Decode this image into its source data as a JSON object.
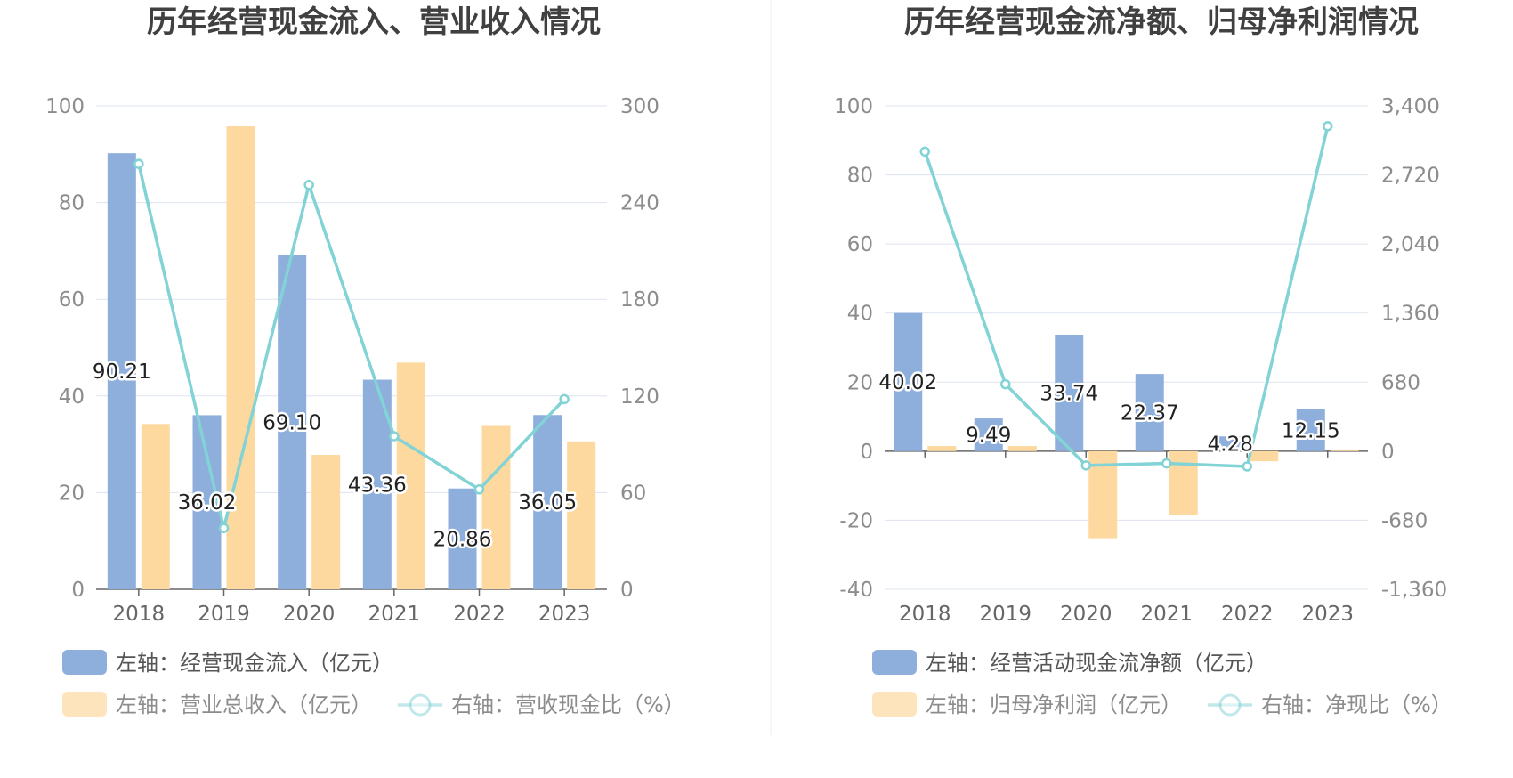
{
  "colors": {
    "blue": "#8eafdc",
    "orange": "#fdd9a0",
    "line": "#82d3d6",
    "grid": "#dde3ee",
    "axis": "#666666"
  },
  "chart_data": [
    {
      "type": "bar+line",
      "title": "历年经营现金流入、营业收入情况",
      "categories": [
        "2018",
        "2019",
        "2020",
        "2021",
        "2022",
        "2023"
      ],
      "left_axis": {
        "min": 0,
        "max": 100,
        "ticks": [
          "0",
          "20",
          "40",
          "60",
          "80",
          "100"
        ]
      },
      "right_axis": {
        "min": 0,
        "max": 300,
        "ticks": [
          "0",
          "60",
          "120",
          "180",
          "240",
          "300"
        ]
      },
      "series": [
        {
          "name": "左轴：经营现金流入（亿元）",
          "type": "bar",
          "axis": "left",
          "values": [
            90.21,
            36.02,
            69.1,
            43.36,
            20.86,
            36.05
          ],
          "labels": [
            "90.21",
            "36.02",
            "69.10",
            "43.36",
            "20.86",
            "36.05"
          ]
        },
        {
          "name": "左轴：营业总收入（亿元）",
          "type": "bar",
          "axis": "left",
          "values": [
            34.2,
            95.9,
            27.8,
            46.9,
            33.8,
            30.6
          ]
        },
        {
          "name": "右轴：营收现金比（%）",
          "type": "line",
          "axis": "right",
          "values": [
            264,
            38,
            251,
            95,
            62,
            118
          ]
        }
      ]
    },
    {
      "type": "bar+line",
      "title": "历年经营现金流净额、归母净利润情况",
      "categories": [
        "2018",
        "2019",
        "2020",
        "2021",
        "2022",
        "2023"
      ],
      "left_axis": {
        "min": -40,
        "max": 100,
        "ticks": [
          "-40",
          "-20",
          "0",
          "20",
          "40",
          "60",
          "80",
          "100"
        ]
      },
      "right_axis": {
        "min": -1360,
        "max": 3400,
        "ticks": [
          "-1,360",
          "-680",
          "0",
          "680",
          "1,360",
          "2,040",
          "2,720",
          "3,400"
        ]
      },
      "series": [
        {
          "name": "左轴：经营活动现金流净额（亿元）",
          "type": "bar",
          "axis": "left",
          "values": [
            40.02,
            9.49,
            33.74,
            22.37,
            4.28,
            12.15
          ],
          "labels": [
            "40.02",
            "9.49",
            "33.74",
            "22.37",
            "4.28",
            "12.15"
          ]
        },
        {
          "name": "左轴：归母净利润（亿元）",
          "type": "bar",
          "axis": "left",
          "values": [
            1.5,
            1.5,
            -25.2,
            -18.4,
            -2.9,
            0.5
          ]
        },
        {
          "name": "右轴：净现比（%）",
          "type": "line",
          "axis": "right",
          "values": [
            2950,
            660,
            -140,
            -120,
            -150,
            3200
          ]
        }
      ]
    }
  ]
}
